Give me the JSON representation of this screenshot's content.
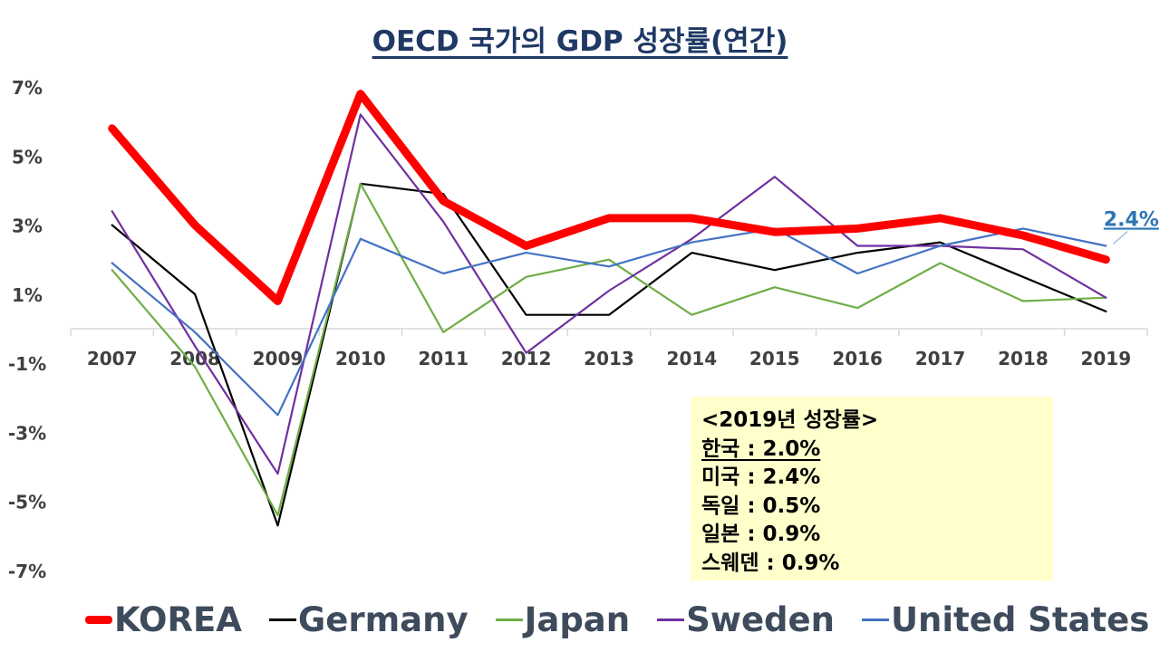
{
  "chart_data": {
    "type": "line",
    "title": "OECD 국가의 GDP 성장률(연간)",
    "categories": [
      "2007",
      "2008",
      "2009",
      "2010",
      "2011",
      "2012",
      "2013",
      "2014",
      "2015",
      "2016",
      "2017",
      "2018",
      "2019"
    ],
    "y_ticks": [
      "7%",
      "5%",
      "3%",
      "1%",
      "-1%",
      "-3%",
      "-5%",
      "-7%"
    ],
    "y_tick_values": [
      7,
      5,
      3,
      1,
      -1,
      -3,
      -5,
      -7
    ],
    "ylim": [
      -7,
      7
    ],
    "series": [
      {
        "name": "KOREA",
        "color": "#ff0000",
        "emphasis": true,
        "values": [
          5.8,
          3.0,
          0.8,
          6.8,
          3.7,
          2.4,
          3.2,
          3.2,
          2.8,
          2.9,
          3.2,
          2.7,
          2.0
        ]
      },
      {
        "name": "Germany",
        "color": "#000000",
        "values": [
          3.0,
          1.0,
          -5.7,
          4.2,
          3.9,
          0.4,
          0.4,
          2.2,
          1.7,
          2.2,
          2.5,
          1.5,
          0.5
        ]
      },
      {
        "name": "Japan",
        "color": "#70ad47",
        "values": [
          1.7,
          -1.1,
          -5.4,
          4.2,
          -0.1,
          1.5,
          2.0,
          0.4,
          1.2,
          0.6,
          1.9,
          0.8,
          0.9
        ]
      },
      {
        "name": "Sweden",
        "color": "#7030a0",
        "values": [
          3.4,
          -0.5,
          -4.2,
          6.2,
          3.1,
          -0.7,
          1.1,
          2.6,
          4.4,
          2.4,
          2.4,
          2.3,
          0.9
        ]
      },
      {
        "name": "United States",
        "color": "#4472c4",
        "values": [
          1.9,
          -0.1,
          -2.5,
          2.6,
          1.6,
          2.2,
          1.8,
          2.5,
          2.9,
          1.6,
          2.4,
          2.9,
          2.4
        ]
      }
    ],
    "annotation": {
      "text": "2.4%",
      "series": "United States",
      "category": "2019",
      "color": "#2e75b6"
    }
  },
  "info_box": {
    "heading": "<2019년 성장률>",
    "rows": [
      "한국 : 2.0%",
      "미국 : 2.4%",
      "독일 : 0.5%",
      "일본 : 0.9%",
      "스웨덴 : 0.9%"
    ]
  },
  "legend": [
    {
      "label": "KOREA",
      "color": "#ff0000"
    },
    {
      "label": "Germany",
      "color": "#000000"
    },
    {
      "label": "Japan",
      "color": "#70ad47"
    },
    {
      "label": "Sweden",
      "color": "#7030a0"
    },
    {
      "label": "United States",
      "color": "#4472c4"
    }
  ]
}
